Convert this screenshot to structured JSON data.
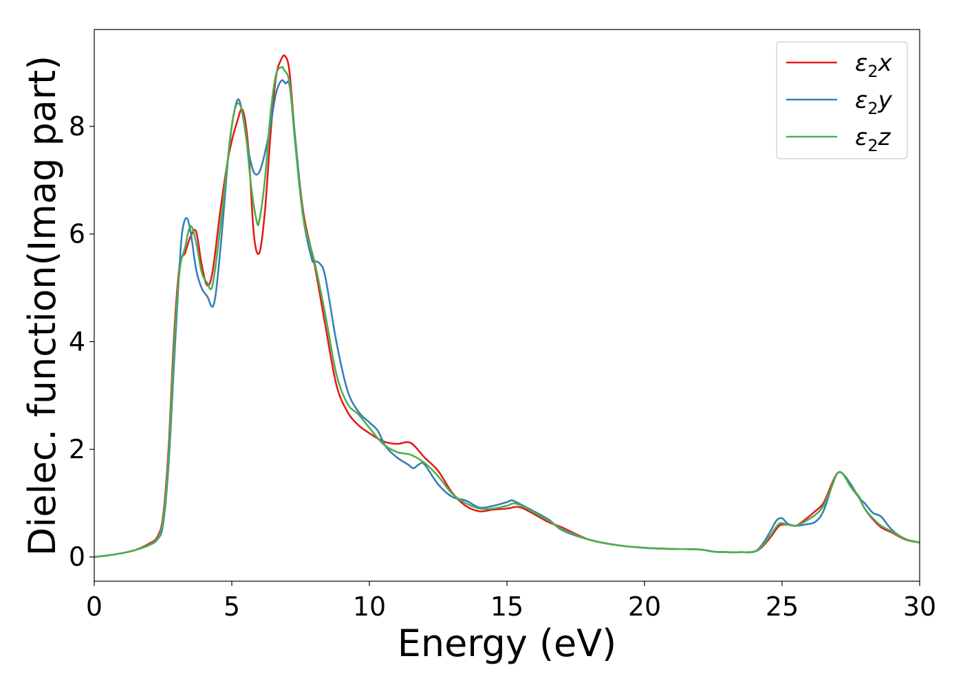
{
  "chart_data": {
    "type": "line",
    "xlabel": "Energy (eV)",
    "ylabel": "Dielec. function(Imag part)",
    "xlim": [
      0,
      30
    ],
    "ylim": [
      -0.45,
      9.8
    ],
    "xticks": [
      0,
      5,
      10,
      15,
      20,
      25,
      30
    ],
    "yticks": [
      0,
      2,
      4,
      6,
      8
    ],
    "grid": false,
    "legend_position": "top-right",
    "series": [
      {
        "name": "ε₂x",
        "legend": {
          "base": "ε",
          "sub": "2",
          "axis": "x"
        },
        "color": "#e41a1c",
        "x": [
          0,
          0.5,
          1,
          1.5,
          2,
          2.3,
          2.5,
          2.7,
          2.9,
          3.1,
          3.3,
          3.5,
          3.7,
          3.9,
          4.1,
          4.3,
          4.6,
          4.9,
          5.2,
          5.4,
          5.6,
          5.8,
          6.0,
          6.2,
          6.4,
          6.6,
          6.8,
          6.95,
          7.1,
          7.3,
          7.6,
          8.0,
          8.4,
          8.8,
          9.2,
          9.6,
          10.0,
          10.5,
          11.0,
          11.5,
          12.0,
          12.5,
          13.0,
          13.5,
          14.0,
          14.5,
          15.0,
          15.4,
          15.8,
          16.5,
          17.0,
          18.0,
          19.0,
          20.0,
          21.0,
          22.0,
          22.5,
          23.0,
          23.5,
          24.0,
          24.3,
          24.6,
          24.9,
          25.2,
          25.5,
          25.8,
          26.2,
          26.5,
          26.8,
          27.0,
          27.2,
          27.5,
          27.8,
          28.0,
          28.3,
          28.6,
          29.0,
          29.5,
          30.0
        ],
        "y": [
          0.0,
          0.03,
          0.07,
          0.13,
          0.25,
          0.38,
          0.75,
          2.0,
          4.1,
          5.4,
          5.65,
          5.95,
          6.05,
          5.45,
          5.05,
          5.3,
          6.5,
          7.5,
          8.1,
          8.3,
          7.6,
          6.0,
          5.65,
          6.4,
          7.8,
          8.9,
          9.25,
          9.3,
          9.0,
          7.8,
          6.4,
          5.45,
          4.3,
          3.2,
          2.7,
          2.45,
          2.3,
          2.15,
          2.1,
          2.12,
          1.85,
          1.6,
          1.2,
          0.95,
          0.85,
          0.88,
          0.9,
          0.93,
          0.85,
          0.65,
          0.55,
          0.32,
          0.22,
          0.17,
          0.15,
          0.14,
          0.1,
          0.09,
          0.09,
          0.1,
          0.2,
          0.38,
          0.58,
          0.6,
          0.58,
          0.68,
          0.85,
          1.0,
          1.35,
          1.55,
          1.55,
          1.3,
          1.1,
          0.9,
          0.7,
          0.55,
          0.45,
          0.32,
          0.27
        ]
      },
      {
        "name": "ε₂y",
        "legend": {
          "base": "ε",
          "sub": "2",
          "axis": "y"
        },
        "color": "#377eb8",
        "x": [
          0,
          0.5,
          1,
          1.5,
          2,
          2.3,
          2.5,
          2.7,
          2.9,
          3.1,
          3.2,
          3.35,
          3.5,
          3.7,
          3.9,
          4.1,
          4.35,
          4.6,
          4.9,
          5.1,
          5.25,
          5.4,
          5.6,
          5.8,
          6.0,
          6.2,
          6.4,
          6.6,
          6.8,
          6.95,
          7.1,
          7.3,
          7.6,
          7.9,
          8.0,
          8.2,
          8.4,
          8.8,
          9.2,
          9.6,
          10.0,
          10.3,
          10.6,
          11.0,
          11.4,
          11.6,
          11.8,
          12.0,
          12.5,
          13.0,
          13.5,
          14.0,
          14.5,
          15.0,
          15.2,
          15.6,
          16.5,
          17.0,
          18.0,
          19.0,
          20.0,
          21.0,
          22.0,
          22.5,
          23.0,
          23.5,
          24.0,
          24.3,
          24.6,
          24.8,
          25.0,
          25.2,
          25.5,
          25.8,
          26.2,
          26.5,
          26.8,
          27.0,
          27.2,
          27.5,
          27.8,
          28.0,
          28.3,
          28.6,
          29.0,
          29.5,
          30.0
        ],
        "y": [
          0.0,
          0.03,
          0.07,
          0.13,
          0.22,
          0.33,
          0.6,
          1.7,
          3.6,
          5.4,
          6.05,
          6.3,
          6.05,
          5.35,
          5.0,
          4.85,
          4.7,
          5.8,
          7.6,
          8.3,
          8.5,
          8.2,
          7.55,
          7.15,
          7.15,
          7.5,
          8.0,
          8.6,
          8.85,
          8.8,
          8.75,
          7.8,
          6.3,
          5.55,
          5.5,
          5.45,
          5.2,
          4.0,
          3.1,
          2.7,
          2.5,
          2.35,
          2.05,
          1.85,
          1.72,
          1.65,
          1.72,
          1.72,
          1.35,
          1.12,
          1.05,
          0.92,
          0.95,
          1.02,
          1.05,
          0.95,
          0.7,
          0.5,
          0.32,
          0.22,
          0.17,
          0.15,
          0.14,
          0.1,
          0.09,
          0.09,
          0.1,
          0.25,
          0.5,
          0.68,
          0.72,
          0.62,
          0.58,
          0.6,
          0.65,
          0.85,
          1.3,
          1.55,
          1.55,
          1.35,
          1.1,
          1.0,
          0.82,
          0.75,
          0.5,
          0.33,
          0.27
        ]
      },
      {
        "name": "ε₂z",
        "legend": {
          "base": "ε",
          "sub": "2",
          "axis": "z"
        },
        "color": "#4daf4a",
        "x": [
          0,
          0.5,
          1,
          1.5,
          2,
          2.3,
          2.5,
          2.7,
          2.9,
          3.1,
          3.3,
          3.5,
          3.7,
          3.9,
          4.1,
          4.3,
          4.6,
          4.9,
          5.1,
          5.3,
          5.5,
          5.7,
          5.9,
          6.0,
          6.2,
          6.4,
          6.6,
          6.8,
          6.9,
          7.1,
          7.3,
          7.6,
          8.0,
          8.4,
          8.8,
          9.2,
          9.6,
          10.0,
          10.5,
          11.0,
          11.5,
          12.0,
          12.5,
          13.0,
          13.5,
          14.0,
          14.5,
          15.0,
          15.4,
          16.5,
          17.0,
          18.0,
          19.0,
          20.0,
          21.0,
          22.0,
          22.5,
          23.0,
          23.5,
          24.0,
          24.3,
          24.6,
          24.9,
          25.2,
          25.5,
          25.8,
          26.2,
          26.5,
          26.8,
          27.0,
          27.2,
          27.5,
          27.8,
          28.0,
          28.3,
          28.6,
          29.0,
          29.5,
          30.0
        ],
        "y": [
          0.0,
          0.03,
          0.07,
          0.13,
          0.23,
          0.35,
          0.68,
          1.85,
          3.9,
          5.3,
          5.75,
          6.15,
          5.85,
          5.3,
          5.1,
          5.05,
          6.2,
          7.6,
          8.3,
          8.4,
          7.9,
          6.9,
          6.25,
          6.25,
          7.0,
          8.2,
          8.95,
          9.1,
          9.05,
          8.8,
          7.7,
          6.3,
          5.5,
          4.5,
          3.4,
          2.85,
          2.65,
          2.4,
          2.1,
          1.95,
          1.9,
          1.75,
          1.5,
          1.18,
          1.0,
          0.9,
          0.9,
          0.95,
          0.98,
          0.68,
          0.52,
          0.32,
          0.22,
          0.17,
          0.15,
          0.14,
          0.1,
          0.09,
          0.09,
          0.1,
          0.22,
          0.42,
          0.62,
          0.6,
          0.58,
          0.65,
          0.78,
          0.95,
          1.3,
          1.55,
          1.55,
          1.3,
          1.12,
          0.9,
          0.72,
          0.58,
          0.47,
          0.33,
          0.27
        ]
      }
    ]
  }
}
